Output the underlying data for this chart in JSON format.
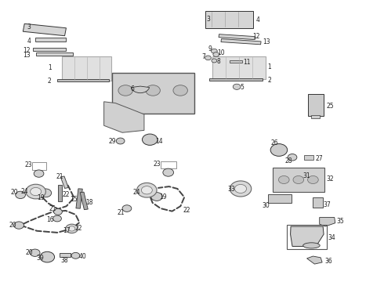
{
  "background_color": "#ffffff",
  "fig_width": 4.9,
  "fig_height": 3.6,
  "dpi": 100,
  "label_fontsize": 5.5,
  "label_color": "#222222",
  "line_color": "#333333"
}
